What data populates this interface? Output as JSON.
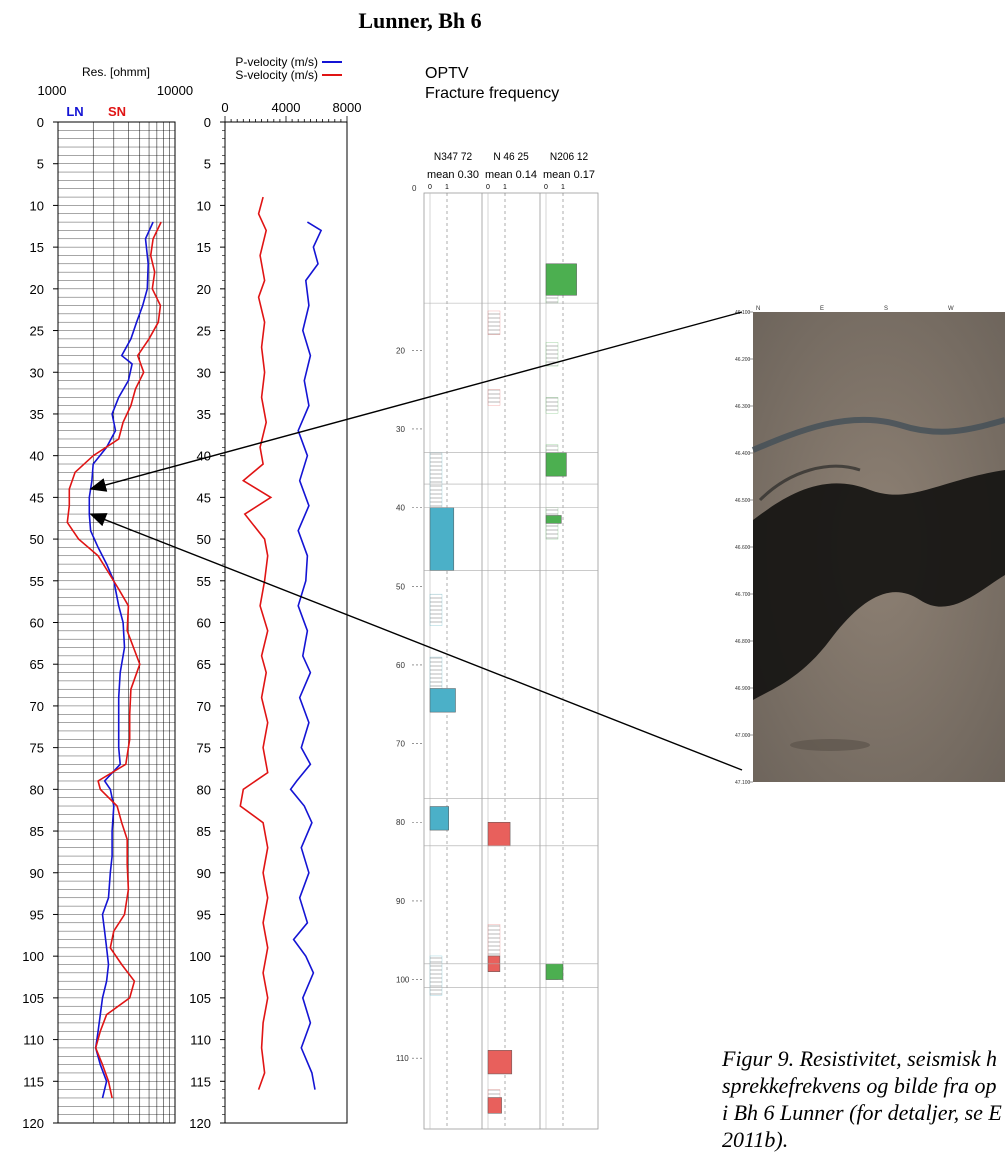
{
  "title": "Lunner,  Bh 6",
  "caption_lines": [
    "Figur 9. Resistivitet, seismisk h",
    "sprekkefrekvens og bilde fra op",
    "i Bh 6 Lunner (for detaljer, se E",
    "2011b)."
  ],
  "chart_data": [
    {
      "type": "line",
      "title": "",
      "xlabel": "Res. [ohmm]",
      "xscale": "log",
      "xlim": [
        1000,
        10000
      ],
      "x_tick_labels": [
        "1000",
        "10000"
      ],
      "ylim": [
        120,
        0
      ],
      "y_ticks": [
        0,
        5,
        10,
        15,
        20,
        25,
        30,
        35,
        40,
        45,
        50,
        55,
        60,
        65,
        70,
        75,
        80,
        85,
        90,
        95,
        100,
        105,
        110,
        115,
        120
      ],
      "grid": true,
      "legend": "top",
      "series": [
        {
          "name": "LN",
          "color": "#1414d4",
          "points": [
            [
              6500,
              12
            ],
            [
              5600,
              14
            ],
            [
              5900,
              17
            ],
            [
              5800,
              20
            ],
            [
              5300,
              22
            ],
            [
              4700,
              24
            ],
            [
              4200,
              26
            ],
            [
              3500,
              28
            ],
            [
              4300,
              29
            ],
            [
              4000,
              31
            ],
            [
              3300,
              33
            ],
            [
              2900,
              35
            ],
            [
              3100,
              37
            ],
            [
              2600,
              39
            ],
            [
              2000,
              41
            ],
            [
              1950,
              43
            ],
            [
              1850,
              45
            ],
            [
              1850,
              47
            ],
            [
              1900,
              49
            ],
            [
              2200,
              51
            ],
            [
              2600,
              53
            ],
            [
              3000,
              55
            ],
            [
              3300,
              58
            ],
            [
              3600,
              60
            ],
            [
              3700,
              63
            ],
            [
              3400,
              66
            ],
            [
              3300,
              69
            ],
            [
              3300,
              72
            ],
            [
              3300,
              75
            ],
            [
              3400,
              77
            ],
            [
              2500,
              79
            ],
            [
              2800,
              80
            ],
            [
              3000,
              82
            ],
            [
              2900,
              85
            ],
            [
              2900,
              88
            ],
            [
              2800,
              90
            ],
            [
              2700,
              93
            ],
            [
              2400,
              95
            ],
            [
              2500,
              97
            ],
            [
              2600,
              99
            ],
            [
              2700,
              101
            ],
            [
              2600,
              103
            ],
            [
              2400,
              105
            ],
            [
              2300,
              107
            ],
            [
              2200,
              109
            ],
            [
              2100,
              111
            ],
            [
              2300,
              113
            ],
            [
              2600,
              115
            ],
            [
              2400,
              117
            ]
          ]
        },
        {
          "name": "SN",
          "color": "#e01414",
          "points": [
            [
              7600,
              12
            ],
            [
              6500,
              14
            ],
            [
              6200,
              16
            ],
            [
              6700,
              18
            ],
            [
              6400,
              20
            ],
            [
              7500,
              22
            ],
            [
              7200,
              24
            ],
            [
              6000,
              26
            ],
            [
              4800,
              28
            ],
            [
              5400,
              30
            ],
            [
              4600,
              32
            ],
            [
              4200,
              34
            ],
            [
              3600,
              36
            ],
            [
              3300,
              38
            ],
            [
              2000,
              40
            ],
            [
              1400,
              42
            ],
            [
              1250,
              44
            ],
            [
              1250,
              46
            ],
            [
              1200,
              48
            ],
            [
              1500,
              50
            ],
            [
              2200,
              52
            ],
            [
              2700,
              54
            ],
            [
              3300,
              56
            ],
            [
              4000,
              58
            ],
            [
              3900,
              61
            ],
            [
              5000,
              65
            ],
            [
              4200,
              68
            ],
            [
              4100,
              71
            ],
            [
              4100,
              74
            ],
            [
              3800,
              77
            ],
            [
              2200,
              79
            ],
            [
              2300,
              80
            ],
            [
              3200,
              82
            ],
            [
              3500,
              84
            ],
            [
              3900,
              86
            ],
            [
              3900,
              89
            ],
            [
              4000,
              92
            ],
            [
              3700,
              95
            ],
            [
              3000,
              97
            ],
            [
              2800,
              99
            ],
            [
              3500,
              101
            ],
            [
              4500,
              103
            ],
            [
              4100,
              105
            ],
            [
              2600,
              107
            ],
            [
              2300,
              109
            ],
            [
              2100,
              111
            ],
            [
              2400,
              113
            ],
            [
              2700,
              115
            ],
            [
              2900,
              117
            ]
          ]
        }
      ]
    },
    {
      "type": "line",
      "title": "",
      "xlabel": "",
      "xlim": [
        0,
        8000
      ],
      "x_tick_labels": [
        "0",
        "4000",
        "8000"
      ],
      "ylim": [
        120,
        0
      ],
      "grid": false,
      "legend": "top",
      "series": [
        {
          "name": "P-velocity (m/s)",
          "color": "#1414d4",
          "points": [
            [
              5400,
              12
            ],
            [
              6300,
              13
            ],
            [
              5800,
              15
            ],
            [
              6100,
              17
            ],
            [
              5300,
              19
            ],
            [
              5500,
              22
            ],
            [
              5100,
              25
            ],
            [
              5600,
              28
            ],
            [
              5200,
              31
            ],
            [
              5500,
              34
            ],
            [
              4800,
              37
            ],
            [
              5400,
              40
            ],
            [
              4900,
              43
            ],
            [
              5500,
              46
            ],
            [
              4800,
              49
            ],
            [
              5400,
              52
            ],
            [
              5300,
              55
            ],
            [
              4800,
              58
            ],
            [
              5400,
              61
            ],
            [
              5100,
              64
            ],
            [
              5600,
              66
            ],
            [
              4900,
              69
            ],
            [
              5500,
              72
            ],
            [
              5000,
              75
            ],
            [
              5600,
              77
            ],
            [
              4700,
              79
            ],
            [
              4300,
              80
            ],
            [
              5200,
              82
            ],
            [
              5700,
              84
            ],
            [
              5000,
              87
            ],
            [
              5500,
              90
            ],
            [
              4900,
              93
            ],
            [
              5400,
              96
            ],
            [
              4500,
              98
            ],
            [
              5300,
              100
            ],
            [
              5800,
              102
            ],
            [
              5100,
              105
            ],
            [
              5600,
              108
            ],
            [
              5000,
              111
            ],
            [
              5700,
              114
            ],
            [
              5900,
              116
            ]
          ]
        },
        {
          "name": "S-velocity (m/s)",
          "color": "#e01414",
          "points": [
            [
              2500,
              9
            ],
            [
              2200,
              11
            ],
            [
              2700,
              13
            ],
            [
              2300,
              16
            ],
            [
              2600,
              19
            ],
            [
              2200,
              21
            ],
            [
              2600,
              24
            ],
            [
              2400,
              27
            ],
            [
              2600,
              30
            ],
            [
              2400,
              33
            ],
            [
              2700,
              36
            ],
            [
              2300,
              39
            ],
            [
              2500,
              41
            ],
            [
              1200,
              43
            ],
            [
              3000,
              45
            ],
            [
              1300,
              47
            ],
            [
              2600,
              50
            ],
            [
              2800,
              52
            ],
            [
              2600,
              55
            ],
            [
              2300,
              58
            ],
            [
              2800,
              61
            ],
            [
              2400,
              64
            ],
            [
              2700,
              66
            ],
            [
              2400,
              69
            ],
            [
              2800,
              72
            ],
            [
              2500,
              75
            ],
            [
              2800,
              78
            ],
            [
              1200,
              80
            ],
            [
              1000,
              82
            ],
            [
              2500,
              84
            ],
            [
              2800,
              87
            ],
            [
              2500,
              90
            ],
            [
              2800,
              93
            ],
            [
              2500,
              96
            ],
            [
              2800,
              99
            ],
            [
              2500,
              102
            ],
            [
              2800,
              105
            ],
            [
              2500,
              108
            ],
            [
              2400,
              111
            ],
            [
              2600,
              114
            ],
            [
              2200,
              116
            ]
          ]
        }
      ]
    },
    {
      "type": "bar",
      "title": "OPTV\nFracture frequency",
      "orientation": "horizontal",
      "ylim": [
        120,
        0
      ],
      "y_ticks": [
        20,
        30,
        40,
        50,
        60,
        70,
        80,
        90,
        100,
        110
      ],
      "x_tick_labels": [
        "0",
        "1"
      ],
      "y_top_label": "0",
      "series": [
        {
          "name": "N347 72",
          "mean_label": "mean  0.30",
          "color": "#4bb0c8",
          "bars": [
            [
              40,
              48,
              1.4
            ],
            [
              63,
              66,
              1.5
            ],
            [
              78,
              81,
              1.1
            ]
          ],
          "hatch": [
            [
              33,
              40
            ],
            [
              51,
              55
            ],
            [
              59,
              63
            ],
            [
              97,
              102
            ]
          ]
        },
        {
          "name": "N 46 25",
          "mean_label": "mean  0.14",
          "color": "#e8605c",
          "bars": [
            [
              80,
              83,
              1.3
            ],
            [
              97,
              99,
              0.7
            ],
            [
              109,
              112,
              1.4
            ],
            [
              115,
              117,
              0.8
            ]
          ],
          "hatch": [
            [
              15,
              18
            ],
            [
              25,
              27
            ],
            [
              93,
              97
            ],
            [
              114,
              117
            ]
          ]
        },
        {
          "name": "N206 12",
          "mean_label": "mean  0.17",
          "color": "#4caf50",
          "bars": [
            [
              9,
              13,
              1.8
            ],
            [
              33,
              36,
              1.2
            ],
            [
              41,
              42,
              0.9
            ],
            [
              98,
              100,
              1.0
            ]
          ],
          "hatch": [
            [
              9,
              14
            ],
            [
              19,
              22
            ],
            [
              26,
              28
            ],
            [
              32,
              36
            ],
            [
              40,
              44
            ],
            [
              98,
              100
            ]
          ]
        }
      ]
    }
  ],
  "optv_image": {
    "depth_labels": [
      "46.100",
      "46.200",
      "46.300",
      "46.400",
      "46.500",
      "46.600",
      "46.700",
      "46.800",
      "46.900",
      "47.000",
      "47.100"
    ],
    "top_labels": [
      "N",
      "E",
      "S",
      "W"
    ]
  },
  "arrows": [
    {
      "from": "optv-image-top",
      "to_depth": 44
    },
    {
      "from": "optv-image-bottom",
      "to_depth": 47
    }
  ]
}
